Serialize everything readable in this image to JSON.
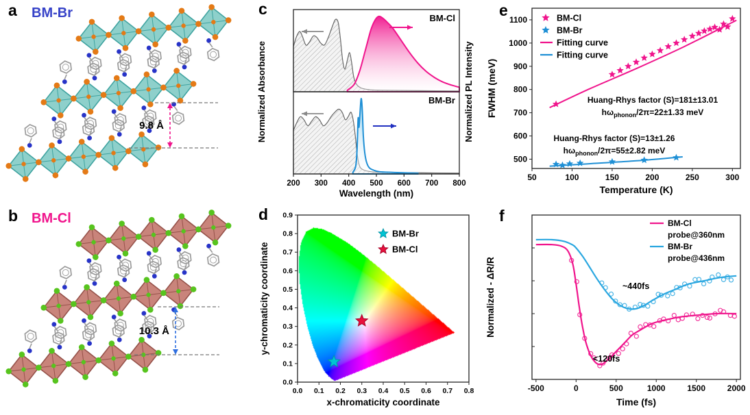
{
  "figure": {
    "panels": {
      "a": {
        "label": "a",
        "title": "BM-Br",
        "title_color": "#3642c8",
        "annotation": "9.8 Å",
        "colors": {
          "octahedron_fill": "#8ed0cb",
          "octahedron_edge": "#3fa3a0",
          "halide_atom": "#e47a16",
          "nitrogen_atom": "#2733c8",
          "carbon": "#9a9a9a",
          "arrow": "#f0148c",
          "guide": "#777777"
        }
      },
      "b": {
        "label": "b",
        "title": "BM-Cl",
        "title_color": "#f0148c",
        "annotation": "10.3 Å",
        "colors": {
          "octahedron_fill": "#c9847b",
          "octahedron_edge": "#96524a",
          "halide_atom": "#57c41e",
          "nitrogen_atom": "#2733c8",
          "carbon": "#9a9a9a",
          "arrow": "#2f6fe0",
          "guide": "#777777"
        }
      },
      "c": {
        "label": "c"
      },
      "d": {
        "label": "d"
      },
      "e": {
        "label": "e"
      },
      "f": {
        "label": "f"
      }
    }
  },
  "chart_data": [
    {
      "panel": "c",
      "type": "area",
      "xlabel": "Wavelength (nm)",
      "ylabel_left": "Normalized Absorbance",
      "ylabel_right": "Normalized PL Intensity",
      "xlim": [
        200,
        800
      ],
      "xticks": [
        200,
        300,
        400,
        500,
        600,
        700,
        800
      ],
      "subplots": [
        {
          "label": "BM-Cl",
          "absorbance_color": "#666666",
          "pl_color": "#f0148c",
          "absorbance": [
            [
              200,
              0.6
            ],
            [
              210,
              0.72
            ],
            [
              222,
              0.8
            ],
            [
              232,
              0.74
            ],
            [
              245,
              0.62
            ],
            [
              258,
              0.66
            ],
            [
              272,
              0.74
            ],
            [
              285,
              0.72
            ],
            [
              298,
              0.65
            ],
            [
              312,
              0.62
            ],
            [
              326,
              0.72
            ],
            [
              340,
              0.86
            ],
            [
              352,
              0.96
            ],
            [
              362,
              0.92
            ],
            [
              370,
              0.7
            ],
            [
              378,
              0.42
            ],
            [
              386,
              0.3
            ],
            [
              395,
              0.42
            ],
            [
              403,
              0.52
            ],
            [
              410,
              0.4
            ],
            [
              418,
              0.2
            ],
            [
              428,
              0.1
            ],
            [
              445,
              0.05
            ],
            [
              470,
              0.03
            ],
            [
              520,
              0.02
            ],
            [
              800,
              0.01
            ]
          ],
          "pl": [
            [
              395,
              0.02
            ],
            [
              420,
              0.1
            ],
            [
              440,
              0.28
            ],
            [
              460,
              0.55
            ],
            [
              480,
              0.82
            ],
            [
              495,
              0.95
            ],
            [
              508,
              1.0
            ],
            [
              522,
              0.98
            ],
            [
              540,
              0.92
            ],
            [
              560,
              0.84
            ],
            [
              590,
              0.68
            ],
            [
              620,
              0.52
            ],
            [
              650,
              0.38
            ],
            [
              680,
              0.27
            ],
            [
              710,
              0.19
            ],
            [
              740,
              0.13
            ],
            [
              770,
              0.09
            ],
            [
              800,
              0.06
            ]
          ]
        },
        {
          "label": "BM-Br",
          "absorbance_color": "#666666",
          "pl_color": "#1e8fd5",
          "absorbance": [
            [
              200,
              0.58
            ],
            [
              212,
              0.68
            ],
            [
              225,
              0.76
            ],
            [
              238,
              0.72
            ],
            [
              252,
              0.64
            ],
            [
              266,
              0.7
            ],
            [
              280,
              0.76
            ],
            [
              294,
              0.72
            ],
            [
              308,
              0.64
            ],
            [
              322,
              0.68
            ],
            [
              336,
              0.76
            ],
            [
              350,
              0.82
            ],
            [
              364,
              0.86
            ],
            [
              376,
              0.82
            ],
            [
              388,
              0.72
            ],
            [
              398,
              0.76
            ],
            [
              408,
              0.82
            ],
            [
              416,
              0.72
            ],
            [
              424,
              0.5
            ],
            [
              430,
              0.28
            ],
            [
              438,
              0.12
            ],
            [
              450,
              0.06
            ],
            [
              480,
              0.03
            ],
            [
              540,
              0.02
            ],
            [
              800,
              0.01
            ]
          ],
          "pl": [
            [
              415,
              0.02
            ],
            [
              425,
              0.1
            ],
            [
              430,
              0.32
            ],
            [
              434,
              0.74
            ],
            [
              437,
              0.62
            ],
            [
              441,
              0.82
            ],
            [
              445,
              1.0
            ],
            [
              449,
              0.85
            ],
            [
              453,
              0.5
            ],
            [
              458,
              0.28
            ],
            [
              465,
              0.15
            ],
            [
              475,
              0.08
            ],
            [
              490,
              0.05
            ],
            [
              510,
              0.03
            ],
            [
              560,
              0.02
            ],
            [
              650,
              0.01
            ]
          ]
        }
      ]
    },
    {
      "panel": "d",
      "type": "scatter",
      "xlabel": "x-chromaticity coordinate",
      "ylabel": "y-chromaticity coordinate",
      "xlim": [
        0.0,
        0.8
      ],
      "ylim": [
        0.0,
        0.9
      ],
      "xtick_labels": [
        "0.0",
        "0.1",
        "0.2",
        "0.3",
        "0.4",
        "0.5",
        "0.6",
        "0.7",
        "0.8"
      ],
      "ytick_labels": [
        "0.0",
        "0.1",
        "0.2",
        "0.3",
        "0.4",
        "0.5",
        "0.6",
        "0.7",
        "0.8",
        "0.9"
      ],
      "background": "CIE 1931 chromaticity diagram",
      "series": [
        {
          "name": "BM-Br",
          "marker": "star",
          "color": "#00c5d4",
          "edge": "#0096a8",
          "points": [
            [
              0.17,
              0.11
            ]
          ]
        },
        {
          "name": "BM-Cl",
          "marker": "star",
          "color": "#e8103c",
          "edge": "#a80028",
          "points": [
            [
              0.3,
              0.33
            ]
          ]
        }
      ],
      "spectral_locus": [
        [
          0.1741,
          0.005
        ],
        [
          0.1714,
          0.0051
        ],
        [
          0.1644,
          0.0109
        ],
        [
          0.144,
          0.0297
        ],
        [
          0.1241,
          0.0578
        ],
        [
          0.0913,
          0.1327
        ],
        [
          0.0687,
          0.2007
        ],
        [
          0.0454,
          0.295
        ],
        [
          0.0235,
          0.4127
        ],
        [
          0.0082,
          0.5384
        ],
        [
          0.0039,
          0.6548
        ],
        [
          0.0139,
          0.7502
        ],
        [
          0.0389,
          0.812
        ],
        [
          0.0743,
          0.8338
        ],
        [
          0.1142,
          0.8262
        ],
        [
          0.1547,
          0.8059
        ],
        [
          0.2296,
          0.7543
        ],
        [
          0.3016,
          0.6923
        ],
        [
          0.3731,
          0.6245
        ],
        [
          0.4441,
          0.5547
        ],
        [
          0.5125,
          0.4866
        ],
        [
          0.5752,
          0.4242
        ],
        [
          0.627,
          0.3725
        ],
        [
          0.6658,
          0.334
        ],
        [
          0.6915,
          0.3083
        ],
        [
          0.719,
          0.2809
        ],
        [
          0.7347,
          0.2653
        ]
      ]
    },
    {
      "panel": "e",
      "type": "scatter",
      "xlabel": "Temperature (K)",
      "ylabel": "FWHM (meV)",
      "xlim": [
        50,
        310
      ],
      "ylim": [
        460,
        1150
      ],
      "xticks": [
        50,
        100,
        150,
        200,
        250,
        300
      ],
      "yticks": [
        500,
        600,
        700,
        800,
        900,
        1000,
        1100
      ],
      "series": [
        {
          "name": "BM-Cl",
          "marker": "star",
          "color": "#f0148c",
          "points": [
            [
              80,
              737
            ],
            [
              150,
              865
            ],
            [
              160,
              882
            ],
            [
              170,
              900
            ],
            [
              180,
              918
            ],
            [
              190,
              936
            ],
            [
              200,
              952
            ],
            [
              210,
              968
            ],
            [
              220,
              985
            ],
            [
              230,
              1000
            ],
            [
              240,
              1015
            ],
            [
              250,
              1030
            ],
            [
              258,
              1042
            ],
            [
              265,
              1052
            ],
            [
              272,
              1060
            ],
            [
              278,
              1068
            ],
            [
              284,
              1058
            ],
            [
              289,
              1082
            ],
            [
              294,
              1070
            ],
            [
              300,
              1105
            ]
          ]
        },
        {
          "name": "BM-Br",
          "marker": "star",
          "color": "#1e8fd5",
          "points": [
            [
              80,
              478
            ],
            [
              88,
              474
            ],
            [
              97,
              480
            ],
            [
              110,
              483
            ],
            [
              150,
              489
            ],
            [
              190,
              496
            ],
            [
              230,
              507
            ]
          ]
        },
        {
          "name": "Fitting curve",
          "marker": "line",
          "color": "#f0148c",
          "points": [
            [
              72,
              722
            ],
            [
              120,
              800
            ],
            [
              180,
              890
            ],
            [
              240,
              985
            ],
            [
              305,
              1098
            ]
          ]
        },
        {
          "name": "Fitting curve",
          "marker": "line",
          "color": "#1e8fd5",
          "points": [
            [
              72,
              470
            ],
            [
              120,
              480
            ],
            [
              180,
              493
            ],
            [
              238,
              510
            ]
          ]
        }
      ],
      "annotations": [
        {
          "line1": "Huang-Rhys factor (S)=181±13.01",
          "line2_pre": "hω",
          "line2_sub": "phonon",
          "line2_post": "/2π=22±1.33 meV"
        },
        {
          "line1": "Huang-Rhys factor (S)=13±1.26",
          "line2_pre": "hω",
          "line2_sub": "phonon",
          "line2_post": "/2π=55±2.82 meV"
        }
      ]
    },
    {
      "panel": "f",
      "type": "line",
      "xlabel": "Time (fs)",
      "ylabel": "Normalized - ΔR/R",
      "xlim": [
        -500,
        2000
      ],
      "xticks": [
        -500,
        0,
        500,
        1000,
        1500,
        2000
      ],
      "series": [
        {
          "name": "BM-Cl",
          "probe": "probe@360nm",
          "color": "#f0148c",
          "scatter_from": -60,
          "fit": [
            [
              -500,
              0.82
            ],
            [
              -300,
              0.82
            ],
            [
              -180,
              0.81
            ],
            [
              -100,
              0.78
            ],
            [
              -40,
              0.7
            ],
            [
              0,
              0.58
            ],
            [
              40,
              0.44
            ],
            [
              80,
              0.32
            ],
            [
              120,
              0.23
            ],
            [
              160,
              0.17
            ],
            [
              200,
              0.13
            ],
            [
              250,
              0.1
            ],
            [
              300,
              0.09
            ],
            [
              350,
              0.1
            ],
            [
              420,
              0.13
            ],
            [
              500,
              0.17
            ],
            [
              600,
              0.22
            ],
            [
              700,
              0.27
            ],
            [
              800,
              0.3
            ],
            [
              950,
              0.34
            ],
            [
              1100,
              0.36
            ],
            [
              1300,
              0.38
            ],
            [
              1500,
              0.39
            ],
            [
              1750,
              0.4
            ],
            [
              2000,
              0.4
            ]
          ]
        },
        {
          "name": "BM-Br",
          "probe": "probe@436nm",
          "color": "#2aa7e0",
          "scatter_from": 320,
          "fit": [
            [
              -500,
              0.85
            ],
            [
              -300,
              0.85
            ],
            [
              -150,
              0.84
            ],
            [
              -50,
              0.82
            ],
            [
              0,
              0.8
            ],
            [
              80,
              0.75
            ],
            [
              160,
              0.69
            ],
            [
              250,
              0.62
            ],
            [
              350,
              0.55
            ],
            [
              450,
              0.49
            ],
            [
              550,
              0.45
            ],
            [
              650,
              0.43
            ],
            [
              750,
              0.43
            ],
            [
              850,
              0.45
            ],
            [
              950,
              0.48
            ],
            [
              1100,
              0.52
            ],
            [
              1250,
              0.55
            ],
            [
              1400,
              0.58
            ],
            [
              1600,
              0.6
            ],
            [
              1800,
              0.62
            ],
            [
              2000,
              0.63
            ]
          ]
        }
      ],
      "annotations": [
        {
          "text": "~440fs"
        },
        {
          "text": "<120fs"
        }
      ]
    }
  ]
}
